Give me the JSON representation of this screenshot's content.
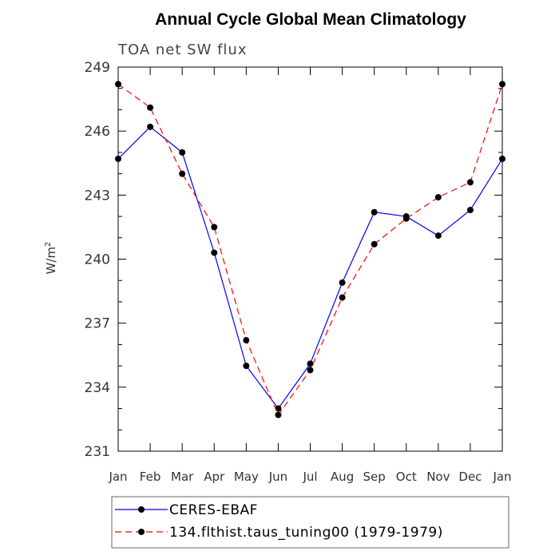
{
  "chart_data": {
    "type": "line",
    "title": "Annual Cycle Global Mean Climatology",
    "subtitle": "TOA net SW flux",
    "ylabel": "W/m",
    "ylabel_sup": "2",
    "ylim": [
      231,
      249
    ],
    "yticks": [
      231,
      234,
      237,
      240,
      243,
      246,
      249
    ],
    "categories": [
      "Jan",
      "Feb",
      "Mar",
      "Apr",
      "May",
      "Jun",
      "Jul",
      "Aug",
      "Sep",
      "Oct",
      "Nov",
      "Dec",
      "Jan"
    ],
    "grid": false,
    "legend_position": "bottom",
    "series": [
      {
        "name": "CERES-EBAF",
        "color": "#0000ff",
        "style": "solid",
        "values": [
          244.7,
          246.2,
          245.0,
          240.3,
          235.0,
          233.0,
          235.1,
          238.9,
          242.2,
          242.0,
          241.1,
          242.3,
          244.7
        ]
      },
      {
        "name": "134.flthist.taus_tuning00 (1979-1979)",
        "color": "#ff0000",
        "style": "dashed",
        "values": [
          248.2,
          247.1,
          244.0,
          241.5,
          236.2,
          232.7,
          234.8,
          238.2,
          240.7,
          241.9,
          242.9,
          243.6,
          248.2
        ]
      }
    ]
  }
}
